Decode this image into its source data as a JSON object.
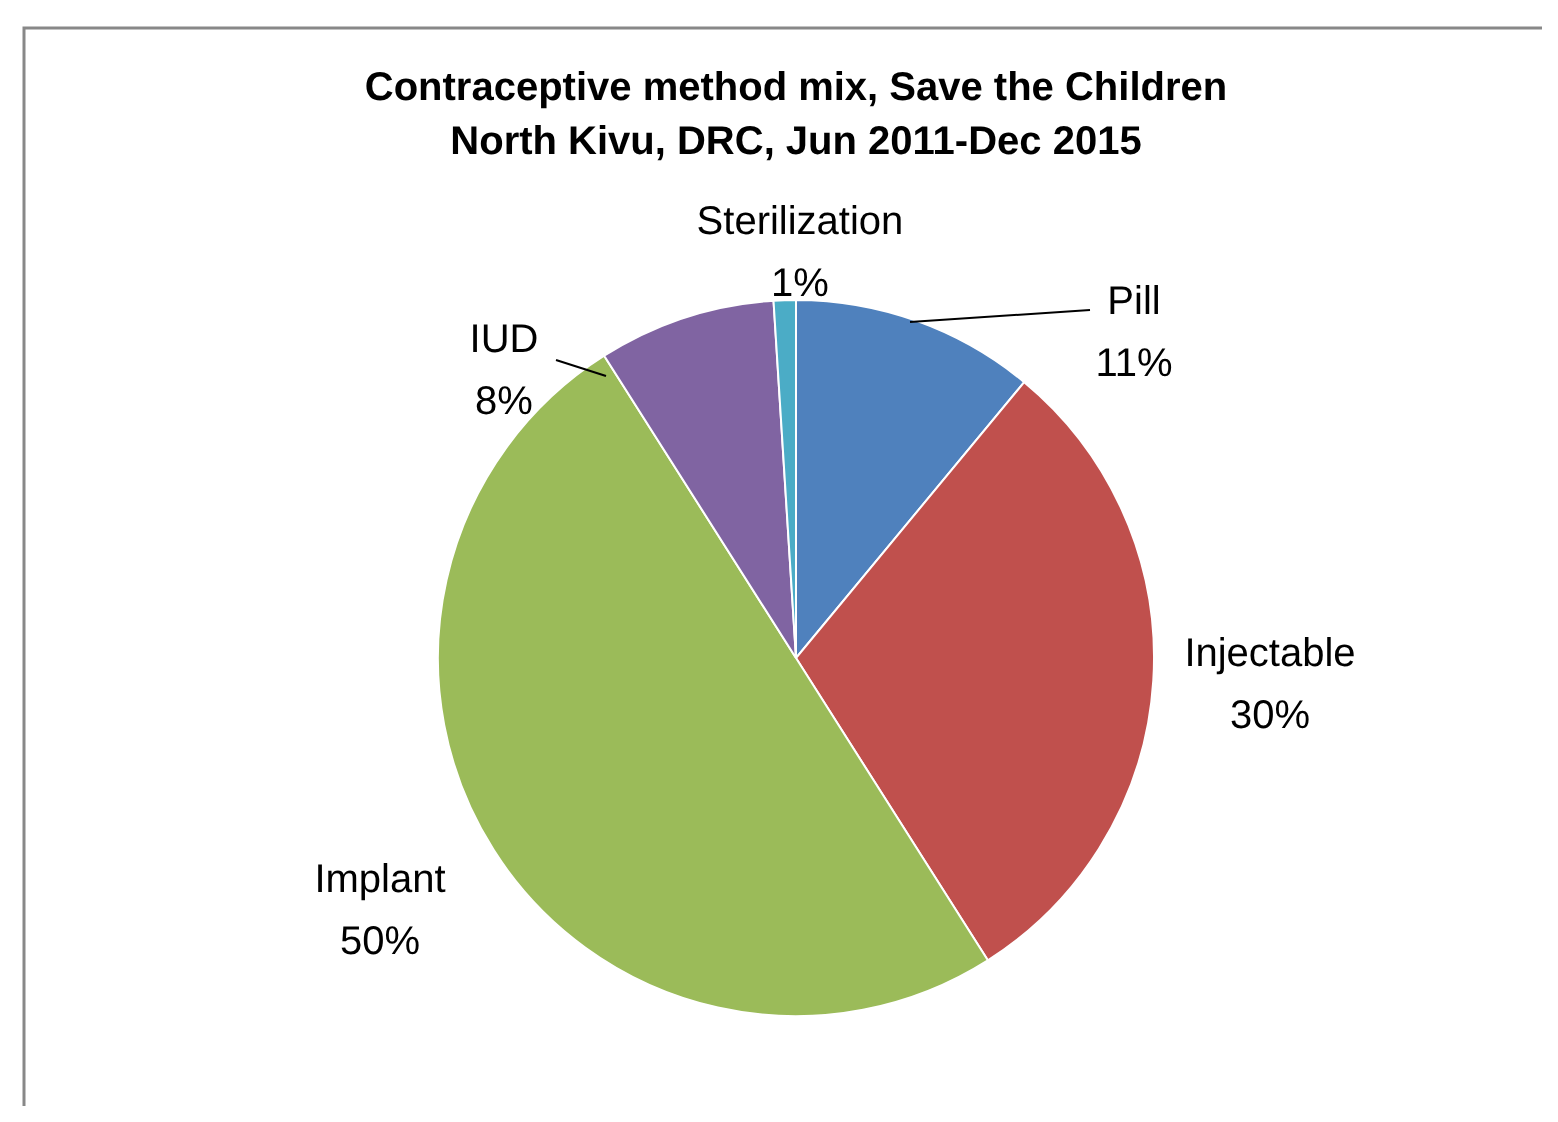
{
  "chart_data": {
    "type": "pie",
    "title": "Contraceptive method mix, Save the Children\nNorth Kivu, DRC, Jun 2011-Dec 2015",
    "categories": [
      "Pill",
      "Injectable",
      "Implant",
      "IUD",
      "Sterilization"
    ],
    "values": [
      11,
      30,
      50,
      8,
      1
    ],
    "colors": [
      "#4f81bd",
      "#c0504d",
      "#9bbb59",
      "#8064a2",
      "#4bacc6"
    ],
    "value_labels": [
      "11%",
      "30%",
      "50%",
      "8%",
      "1%"
    ]
  }
}
